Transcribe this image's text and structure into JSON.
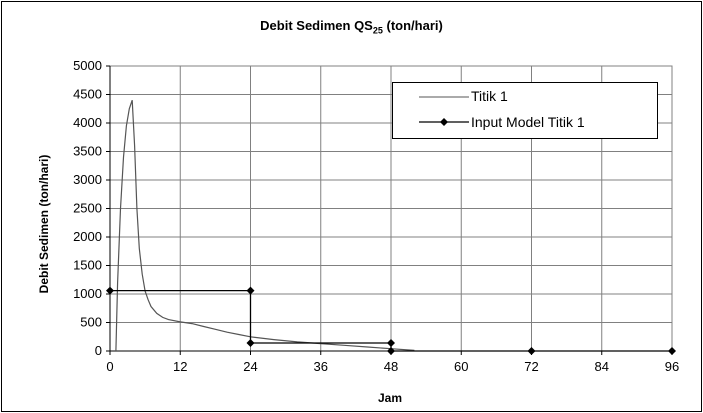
{
  "chart_data": {
    "type": "line",
    "title_main": "Debit Sedimen QS",
    "title_sub": "25",
    "title_unit": "(ton/hari)",
    "xlabel": "Jam",
    "ylabel": "Debit Sedimen (ton/hari)",
    "xlim": [
      0,
      96
    ],
    "ylim": [
      0,
      5000
    ],
    "xticks": [
      0,
      12,
      24,
      36,
      48,
      60,
      72,
      84,
      96
    ],
    "yticks": [
      0,
      500,
      1000,
      1500,
      2000,
      2500,
      3000,
      3500,
      4000,
      4500,
      5000
    ],
    "grid": true,
    "legend_position": "top-right",
    "series": [
      {
        "name": "Titik 1",
        "color": "#555555",
        "marker": "none",
        "x": [
          1,
          1.3,
          1.8,
          2.3,
          2.8,
          3.3,
          3.8,
          4.2,
          4.6,
          5.0,
          5.5,
          6.0,
          6.5,
          7.0,
          8,
          9,
          10,
          12,
          14,
          16,
          18,
          20,
          22,
          24,
          28,
          32,
          36,
          40,
          44,
          48,
          52
        ],
        "y": [
          0,
          1200,
          2500,
          3400,
          3950,
          4250,
          4400,
          3600,
          2500,
          1800,
          1350,
          1050,
          900,
          780,
          660,
          590,
          550,
          510,
          480,
          430,
          380,
          330,
          290,
          250,
          200,
          160,
          130,
          100,
          70,
          40,
          10
        ]
      },
      {
        "name": "Input Model Titik 1",
        "color": "#000000",
        "marker": "diamond",
        "x": [
          0,
          24,
          24,
          48,
          48,
          72,
          96
        ],
        "y": [
          1060,
          1060,
          140,
          140,
          0,
          0,
          0
        ]
      }
    ]
  }
}
